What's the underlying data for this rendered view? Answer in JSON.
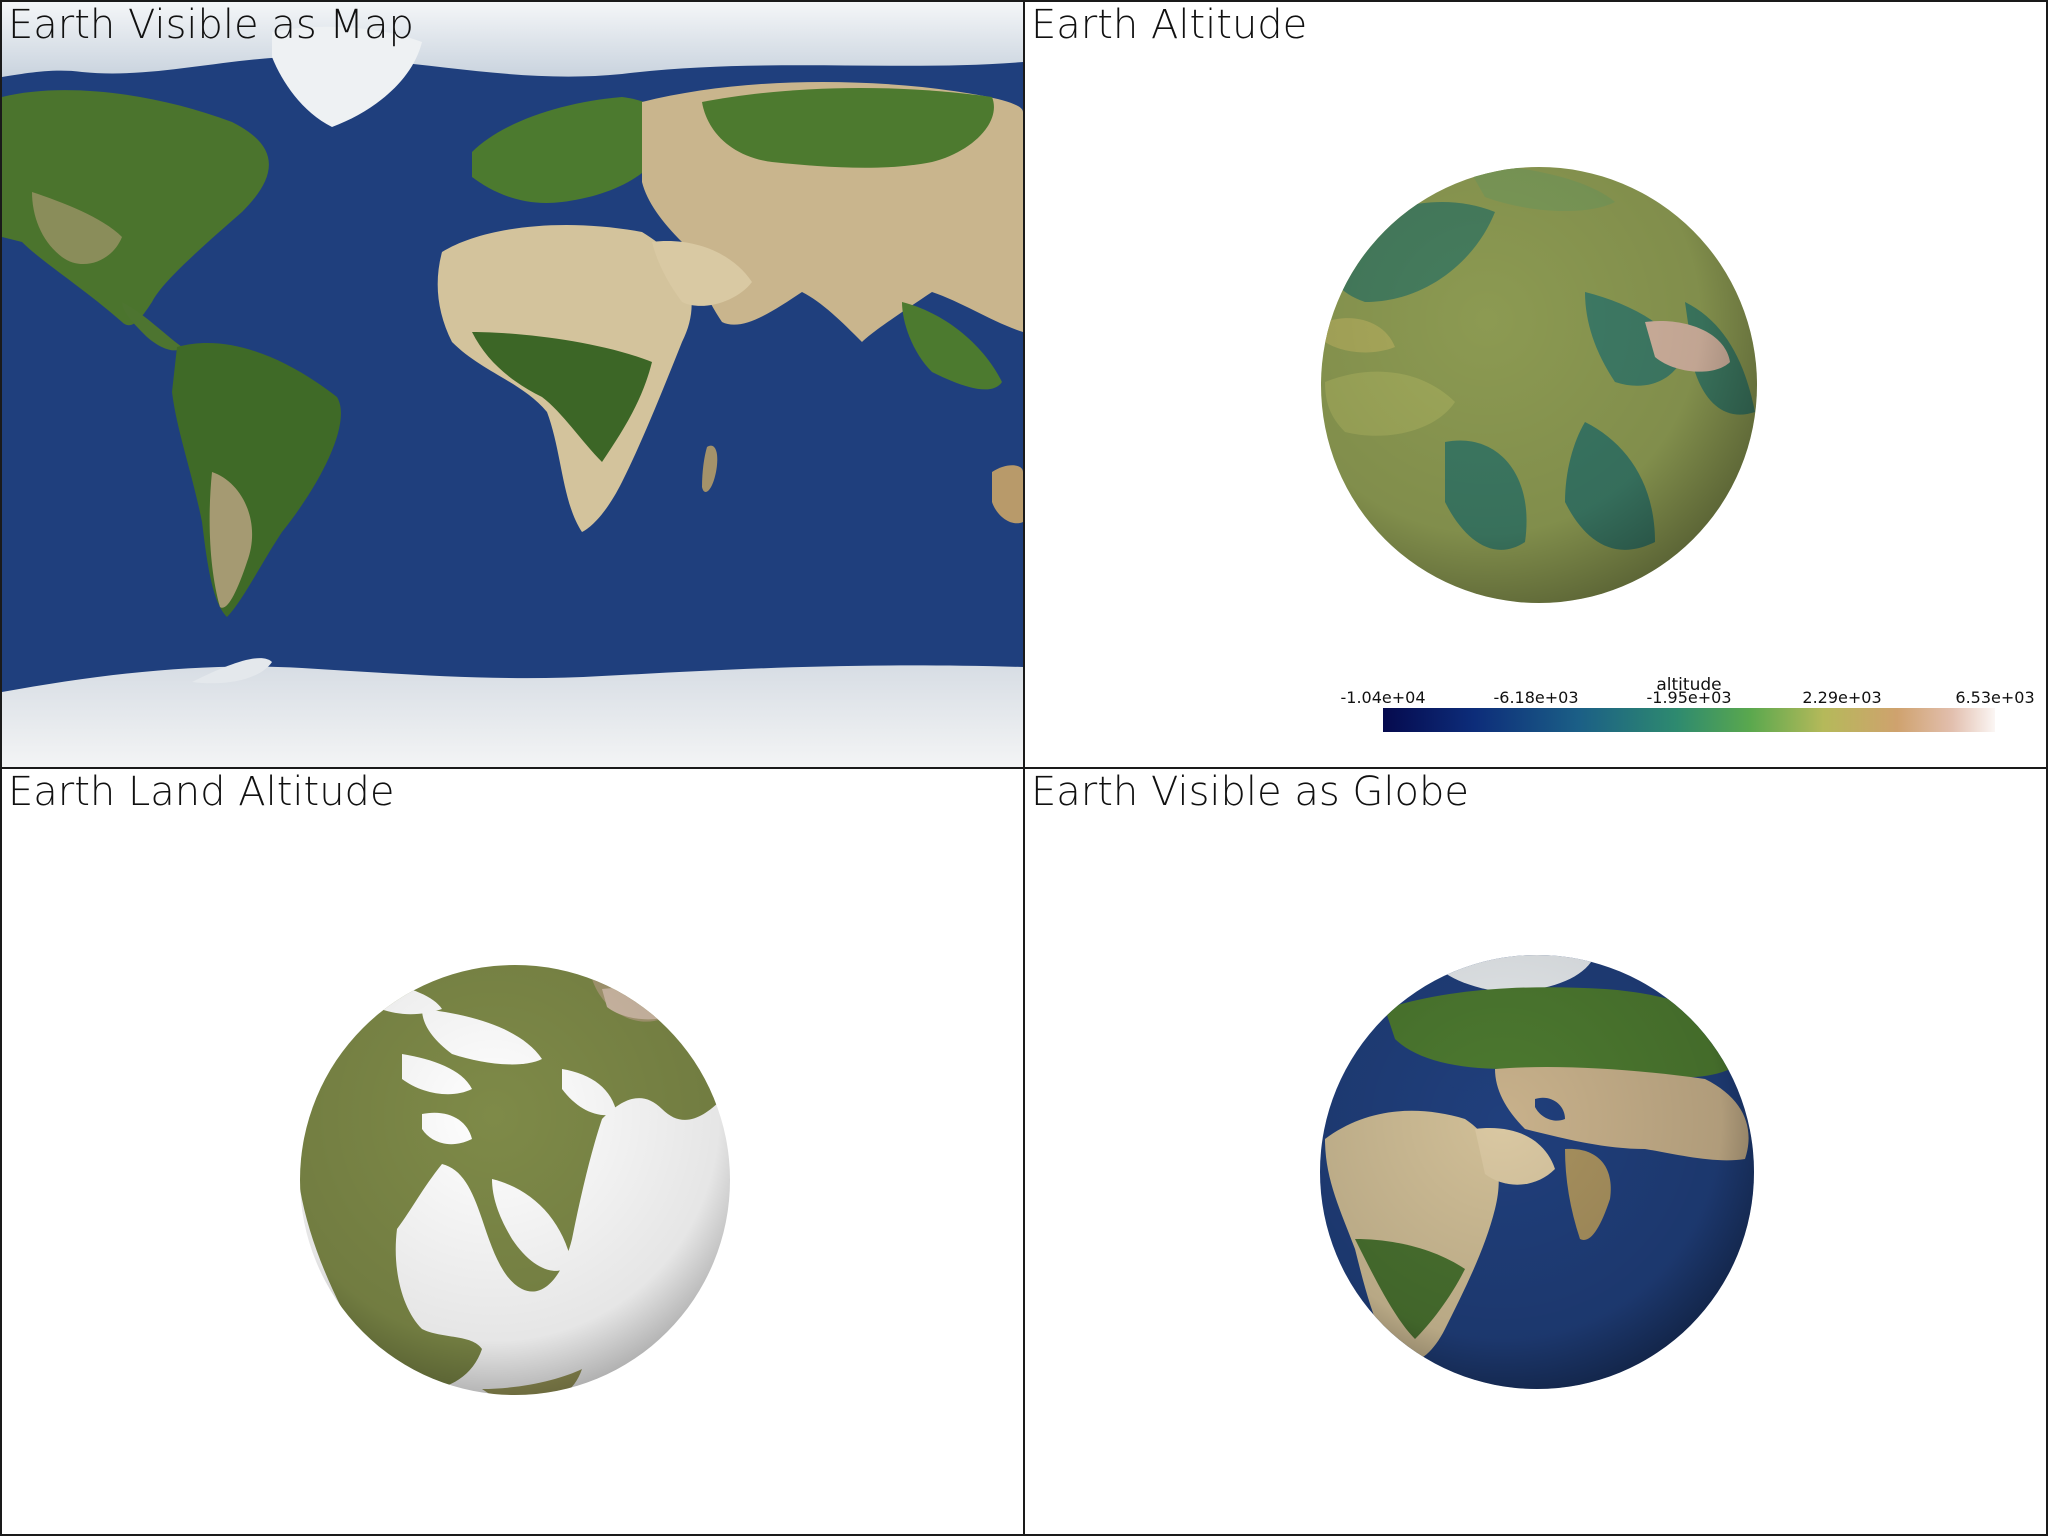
{
  "viewports": {
    "map": {
      "title": "Earth Visible as Map"
    },
    "altitude": {
      "title": "Earth Altitude",
      "colorbar": {
        "title": "altitude",
        "ticks": [
          "-1.04e+04",
          "-6.18e+03",
          "-1.95e+03",
          "2.29e+03",
          "6.53e+03"
        ],
        "range": [
          -10400,
          6530
        ]
      }
    },
    "land": {
      "title": "Earth Land Altitude"
    },
    "globe": {
      "title": "Earth Visible as Globe"
    }
  },
  "colors": {
    "ocean": "#1e3d7a",
    "land_green": "#4f7a2e",
    "desert": "#cdb88e",
    "ice": "#e9eef2",
    "altitude_land": "#8a9a52",
    "altitude_sea": "#3a7a62",
    "land_only": "#7f8a4a"
  }
}
